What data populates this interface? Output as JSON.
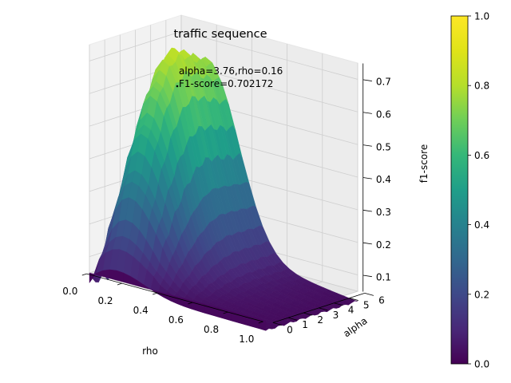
{
  "chart_data": {
    "type": "surface3d",
    "title": "traffic sequence",
    "xlabel": "rho",
    "ylabel": "alpha",
    "zlabel": "f1-score",
    "xlim": [
      0.0,
      1.0
    ],
    "ylim": [
      0.0,
      6.0
    ],
    "zlim": [
      0.05,
      0.75
    ],
    "x_ticks": [
      "0.0",
      "0.2",
      "0.4",
      "0.6",
      "0.8",
      "1.0"
    ],
    "y_ticks": [
      "0",
      "1",
      "2",
      "3",
      "4",
      "5",
      "6"
    ],
    "z_ticks": [
      "0.1",
      "0.2",
      "0.3",
      "0.4",
      "0.5",
      "0.6",
      "0.7"
    ],
    "colormap": "viridis",
    "colorbar": {
      "min": 0.0,
      "max": 1.0,
      "ticks": [
        "0.0",
        "0.2",
        "0.4",
        "0.6",
        "0.8",
        "1.0"
      ]
    },
    "peak": {
      "rho": 0.16,
      "alpha": 3.76,
      "f1": 0.702172
    },
    "annotation": {
      "line1": "alpha=3.76,rho=0.16",
      "line2": "F1-score=0.702172"
    },
    "grid": true
  }
}
